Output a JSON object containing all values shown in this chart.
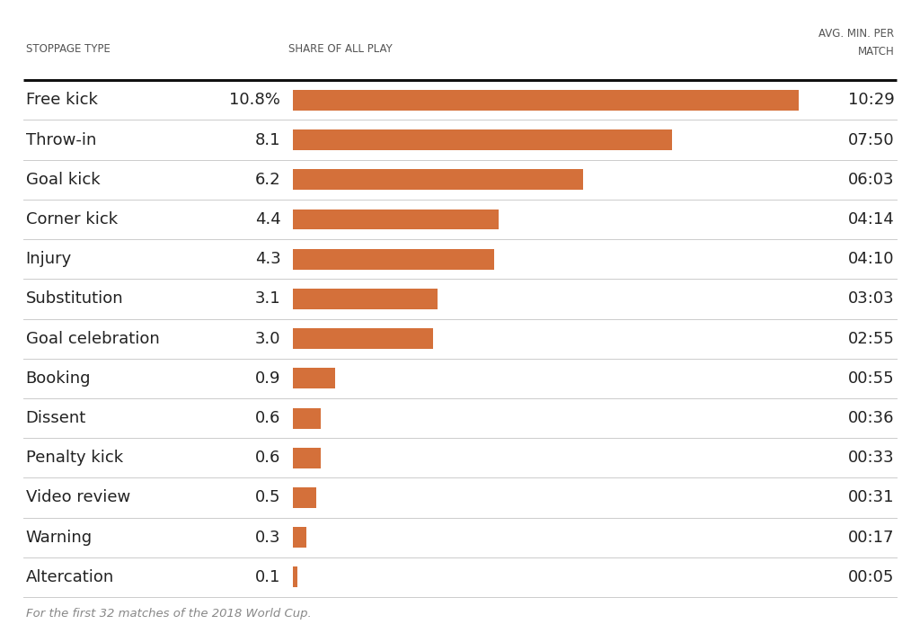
{
  "categories": [
    "Free kick",
    "Throw-in",
    "Goal kick",
    "Corner kick",
    "Injury",
    "Substitution",
    "Goal celebration",
    "Booking",
    "Dissent",
    "Penalty kick",
    "Video review",
    "Warning",
    "Altercation"
  ],
  "shares": [
    10.8,
    8.1,
    6.2,
    4.4,
    4.3,
    3.1,
    3.0,
    0.9,
    0.6,
    0.6,
    0.5,
    0.3,
    0.1
  ],
  "share_labels": [
    "10.8%",
    "8.1",
    "6.2",
    "4.4",
    "4.3",
    "3.1",
    "3.0",
    "0.9",
    "0.6",
    "0.6",
    "0.5",
    "0.3",
    "0.1"
  ],
  "avg_min": [
    "10:29",
    "07:50",
    "06:03",
    "04:14",
    "04:10",
    "03:03",
    "02:55",
    "00:55",
    "00:36",
    "00:33",
    "00:31",
    "00:17",
    "00:05"
  ],
  "bar_color": "#d4703a",
  "bg_color": "#ffffff",
  "header_stoppage": "STOPPAGE TYPE",
  "header_share": "SHARE OF ALL PLAY",
  "header_avg1": "AVG. MIN. PER",
  "header_avg2": "MATCH",
  "footnote": "For the first 32 matches of the 2018 World Cup.",
  "max_share": 10.8,
  "text_color": "#222222",
  "header_color": "#555555",
  "footnote_color": "#888888",
  "separator_color": "#cccccc",
  "top_border_color": "#111111"
}
